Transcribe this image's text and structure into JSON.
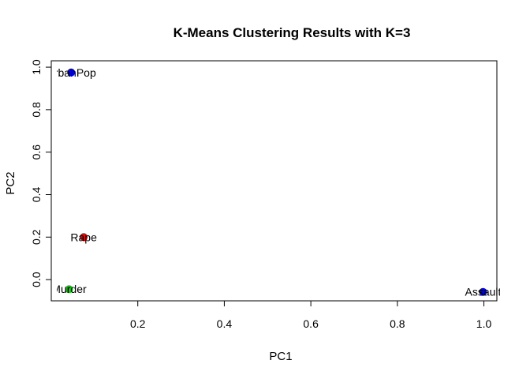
{
  "chart_data": {
    "type": "scatter",
    "title": "K-Means Clustering Results with K=3",
    "xlabel": "PC1",
    "ylabel": "PC2",
    "xlim": [
      0.0,
      1.03
    ],
    "ylim": [
      -0.1,
      1.03
    ],
    "xticks": [
      0.2,
      0.4,
      0.6,
      0.8,
      1.0
    ],
    "xtick_labels": [
      "0.2",
      "0.4",
      "0.6",
      "0.8",
      "1.0"
    ],
    "yticks": [
      0.0,
      0.2,
      0.4,
      0.6,
      0.8,
      1.0
    ],
    "ytick_labels": [
      "0.0",
      "0.2",
      "0.4",
      "0.6",
      "0.8",
      "1.0"
    ],
    "grid": false,
    "points": [
      {
        "label": "UrbanPop",
        "x": 0.046,
        "y": 0.975,
        "color": "#0000ee"
      },
      {
        "label": "Rape",
        "x": 0.075,
        "y": 0.2,
        "color": "#cc1111"
      },
      {
        "label": "Murder",
        "x": 0.041,
        "y": -0.045,
        "color": "#22bb22"
      },
      {
        "label": "Assault",
        "x": 0.998,
        "y": -0.058,
        "color": "#0000ee"
      }
    ]
  }
}
